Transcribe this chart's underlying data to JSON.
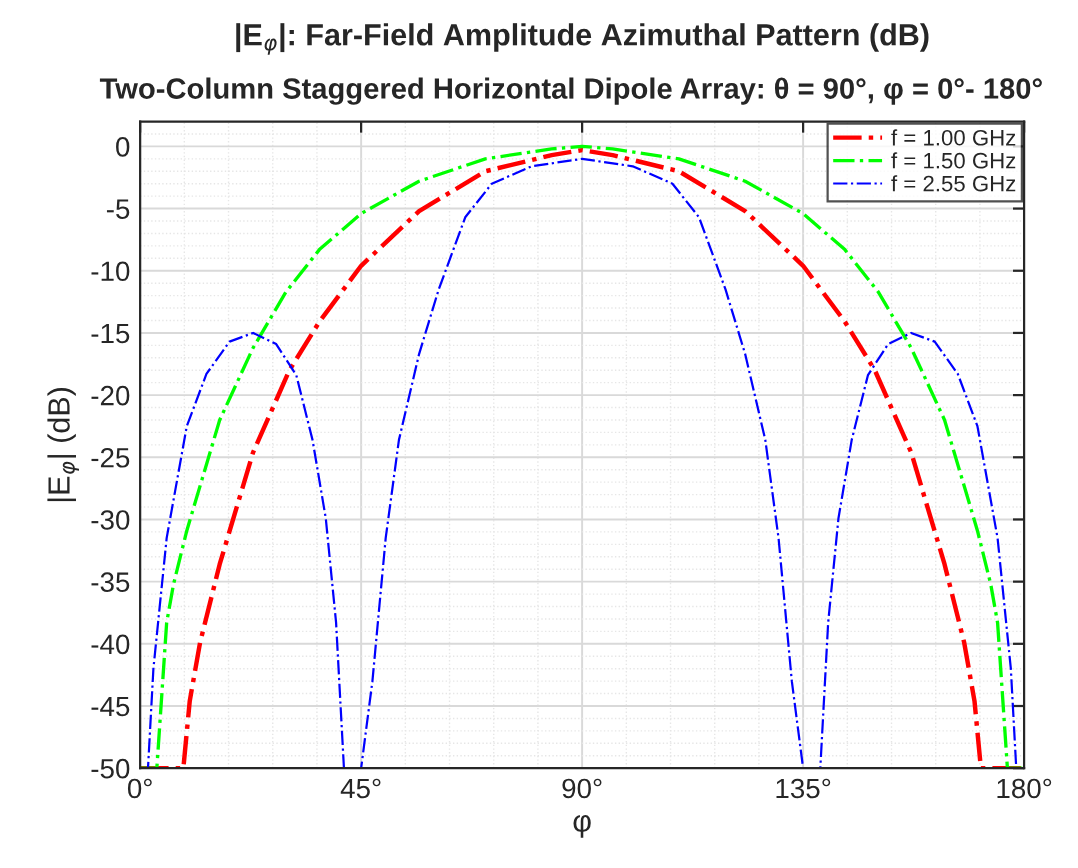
{
  "chart_data": {
    "type": "line",
    "title": "|E$_{φ}$|: Far-Field Amplitude Azimuthal Pattern (dB)",
    "subtitle": "Two-Column Staggered Horizontal Dipole Array: θ = 90°, φ = 0°- 180°",
    "xlabel": "φ",
    "ylabel": "|E$_{φ}$| (dB)",
    "xlim": [
      0,
      180
    ],
    "ylim": [
      -50,
      2
    ],
    "xticks": [
      {
        "value": 0,
        "label": "0°"
      },
      {
        "value": 45,
        "label": "45°"
      },
      {
        "value": 90,
        "label": "90°"
      },
      {
        "value": 135,
        "label": "135°"
      },
      {
        "value": 180,
        "label": "180°"
      }
    ],
    "yticks": [
      -50,
      -45,
      -40,
      -35,
      -30,
      -25,
      -20,
      -15,
      -10,
      -5,
      0
    ],
    "grid": true,
    "legend": "top right",
    "line_style": "dashdot",
    "marker": "none",
    "series": [
      {
        "name": "f = 1.00 GHz",
        "color": "#ff0000",
        "x": [
          0,
          8.8,
          10.1,
          12.2,
          16.2,
          23,
          30.4,
          36.5,
          45,
          56.8,
          70.3,
          83.8,
          90,
          96.2,
          109.7,
          123.2,
          135,
          143.5,
          149.6,
          157,
          163.8,
          167.8,
          169.9,
          171.2,
          180
        ],
        "values": [
          -50,
          -50,
          -44.6,
          -39.9,
          -33.6,
          -24.6,
          -18,
          -14.1,
          -9.6,
          -5.2,
          -2,
          -0.7,
          -0.3,
          -0.7,
          -2,
          -5.2,
          -9.6,
          -14.1,
          -18,
          -24.6,
          -33.6,
          -39.9,
          -44.6,
          -50,
          -50
        ]
      },
      {
        "name": "f = 1.50 GHz",
        "color": "#00ff00",
        "x": [
          0,
          3.4,
          5.4,
          6.8,
          9.5,
          16.2,
          23,
          29.7,
          36.5,
          45,
          56.8,
          70.3,
          83.8,
          90,
          96.2,
          109.7,
          123.2,
          135,
          143.5,
          150.3,
          157,
          163.8,
          170.5,
          173.2,
          174.6,
          176.6,
          180
        ],
        "values": [
          -50,
          -50,
          -38.3,
          -35.2,
          -30.9,
          -22,
          -16.2,
          -11.7,
          -8.3,
          -5.4,
          -2.8,
          -1,
          -0.2,
          0,
          -0.2,
          -1,
          -2.8,
          -5.4,
          -8.3,
          -11.7,
          -16.2,
          -22,
          -30.9,
          -35.2,
          -38.3,
          -50,
          -50
        ]
      },
      {
        "name": "f = 2.55 GHz",
        "color": "#0000ff",
        "x": [
          0,
          1.6,
          2.7,
          5.4,
          9.5,
          13.5,
          18.2,
          23,
          27.7,
          31.8,
          35.1,
          37.8,
          39.9,
          41.5,
          45,
          47.3,
          50,
          52.7,
          56.8,
          60.8,
          66.2,
          71.6,
          79.7,
          90,
          100.3,
          108.4,
          113.8,
          119.2,
          123.2,
          127.3,
          130,
          132.7,
          135,
          138.5,
          140.1,
          142.2,
          144.9,
          148.2,
          152.3,
          157,
          161.8,
          166.5,
          170.5,
          174.6,
          177.3,
          178.4,
          180
        ],
        "values": [
          -50,
          -50,
          -42,
          -31.5,
          -22.5,
          -18.3,
          -15.7,
          -15,
          -15.9,
          -18.4,
          -23.6,
          -29.9,
          -38.3,
          -50,
          -50,
          -43,
          -31.5,
          -23.6,
          -16.7,
          -11.5,
          -5.7,
          -3,
          -1.6,
          -1,
          -1.6,
          -3,
          -5.7,
          -11.5,
          -16.7,
          -23.6,
          -31.5,
          -43,
          -50,
          -50,
          -38.3,
          -29.9,
          -23.6,
          -18.4,
          -15.9,
          -15,
          -15.7,
          -18.3,
          -22.5,
          -31.5,
          -42,
          -50,
          -50
        ]
      }
    ]
  }
}
